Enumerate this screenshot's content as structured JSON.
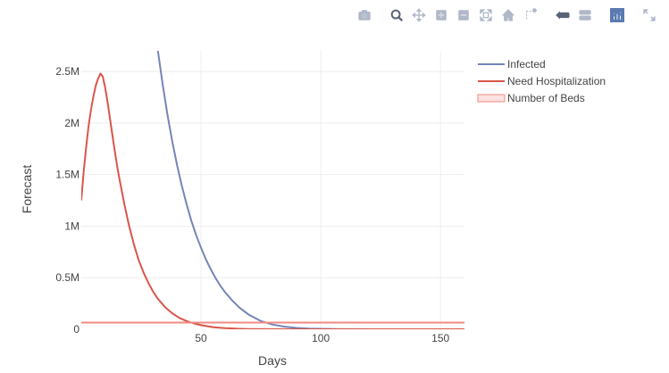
{
  "modebar": {
    "buttons": [
      {
        "icon": "camera-icon",
        "color": "#b0b8c8"
      },
      {
        "icon": "zoom-icon",
        "color": "#5a6478"
      },
      {
        "icon": "pan-icon",
        "color": "#b0b8c8"
      },
      {
        "icon": "zoom-in-icon",
        "color": "#b0b8c8"
      },
      {
        "icon": "zoom-out-icon",
        "color": "#b0b8c8"
      },
      {
        "icon": "autoscale-icon",
        "color": "#b0b8c8"
      },
      {
        "icon": "home-icon",
        "color": "#b0b8c8"
      },
      {
        "icon": "spike-lines-icon",
        "color": "#b0b8c8"
      },
      {
        "icon": "hover-closest-icon",
        "color": "#5a6478"
      },
      {
        "icon": "hover-compare-icon",
        "color": "#b0b8c8"
      },
      {
        "icon": "plotly-logo-icon",
        "color": "#5a7ab0"
      },
      {
        "icon": "fullscreen-icon",
        "color": "#b0b8c8"
      }
    ]
  },
  "chart_data": {
    "type": "line",
    "title": "",
    "xlabel": "Days",
    "ylabel": "Forecast",
    "xlim": [
      0,
      160
    ],
    "ylim": [
      0,
      2700000
    ],
    "x_ticks": [
      50,
      100,
      150
    ],
    "x_tick_labels": [
      "50",
      "100",
      "150"
    ],
    "y_ticks": [
      0,
      500000,
      1000000,
      1500000,
      2000000,
      2500000
    ],
    "y_tick_labels": [
      "0",
      "0.5M",
      "1M",
      "1.5M",
      "2M",
      "2.5M"
    ],
    "grid": true,
    "legend_position": "top-right",
    "series": [
      {
        "name": "Infected",
        "color": "#7485b8",
        "x": [
          30,
          32,
          34,
          36,
          38,
          40,
          42,
          44,
          46,
          48,
          50,
          52,
          54,
          56,
          58,
          60,
          63,
          66,
          70,
          75,
          80,
          85,
          90,
          95,
          100,
          110,
          120,
          130,
          140,
          150,
          160
        ],
        "y": [
          3200000,
          2700000,
          2370000,
          2080000,
          1820000,
          1590000,
          1390000,
          1210000,
          1050000,
          910000,
          790000,
          680000,
          585000,
          500000,
          425000,
          360000,
          280000,
          210000,
          140000,
          80000,
          45000,
          25000,
          13000,
          7000,
          4000,
          1000,
          300,
          80,
          20,
          5,
          0
        ]
      },
      {
        "name": "Need Hospitalization",
        "color": "#d9564a",
        "x": [
          0,
          1,
          2,
          3,
          4,
          5,
          6,
          7,
          8,
          9,
          10,
          11,
          12,
          13,
          14,
          15,
          16,
          18,
          20,
          22,
          24,
          26,
          28,
          30,
          32,
          35,
          38,
          41,
          44,
          47,
          50,
          55,
          60,
          65,
          70,
          80,
          90,
          100,
          120,
          140,
          160
        ],
        "y": [
          1250000,
          1530000,
          1760000,
          1960000,
          2120000,
          2250000,
          2360000,
          2430000,
          2480000,
          2450000,
          2340000,
          2200000,
          2040000,
          1880000,
          1730000,
          1580000,
          1450000,
          1210000,
          1000000,
          820000,
          670000,
          550000,
          450000,
          365000,
          295000,
          215000,
          155000,
          110000,
          80000,
          57000,
          40000,
          21000,
          11000,
          5500,
          2800,
          700,
          180,
          45,
          5,
          0,
          0
        ]
      },
      {
        "name": "Number of Beds",
        "color": "#f28a82",
        "x": [
          0,
          160
        ],
        "y": [
          65000,
          65000
        ]
      }
    ]
  }
}
